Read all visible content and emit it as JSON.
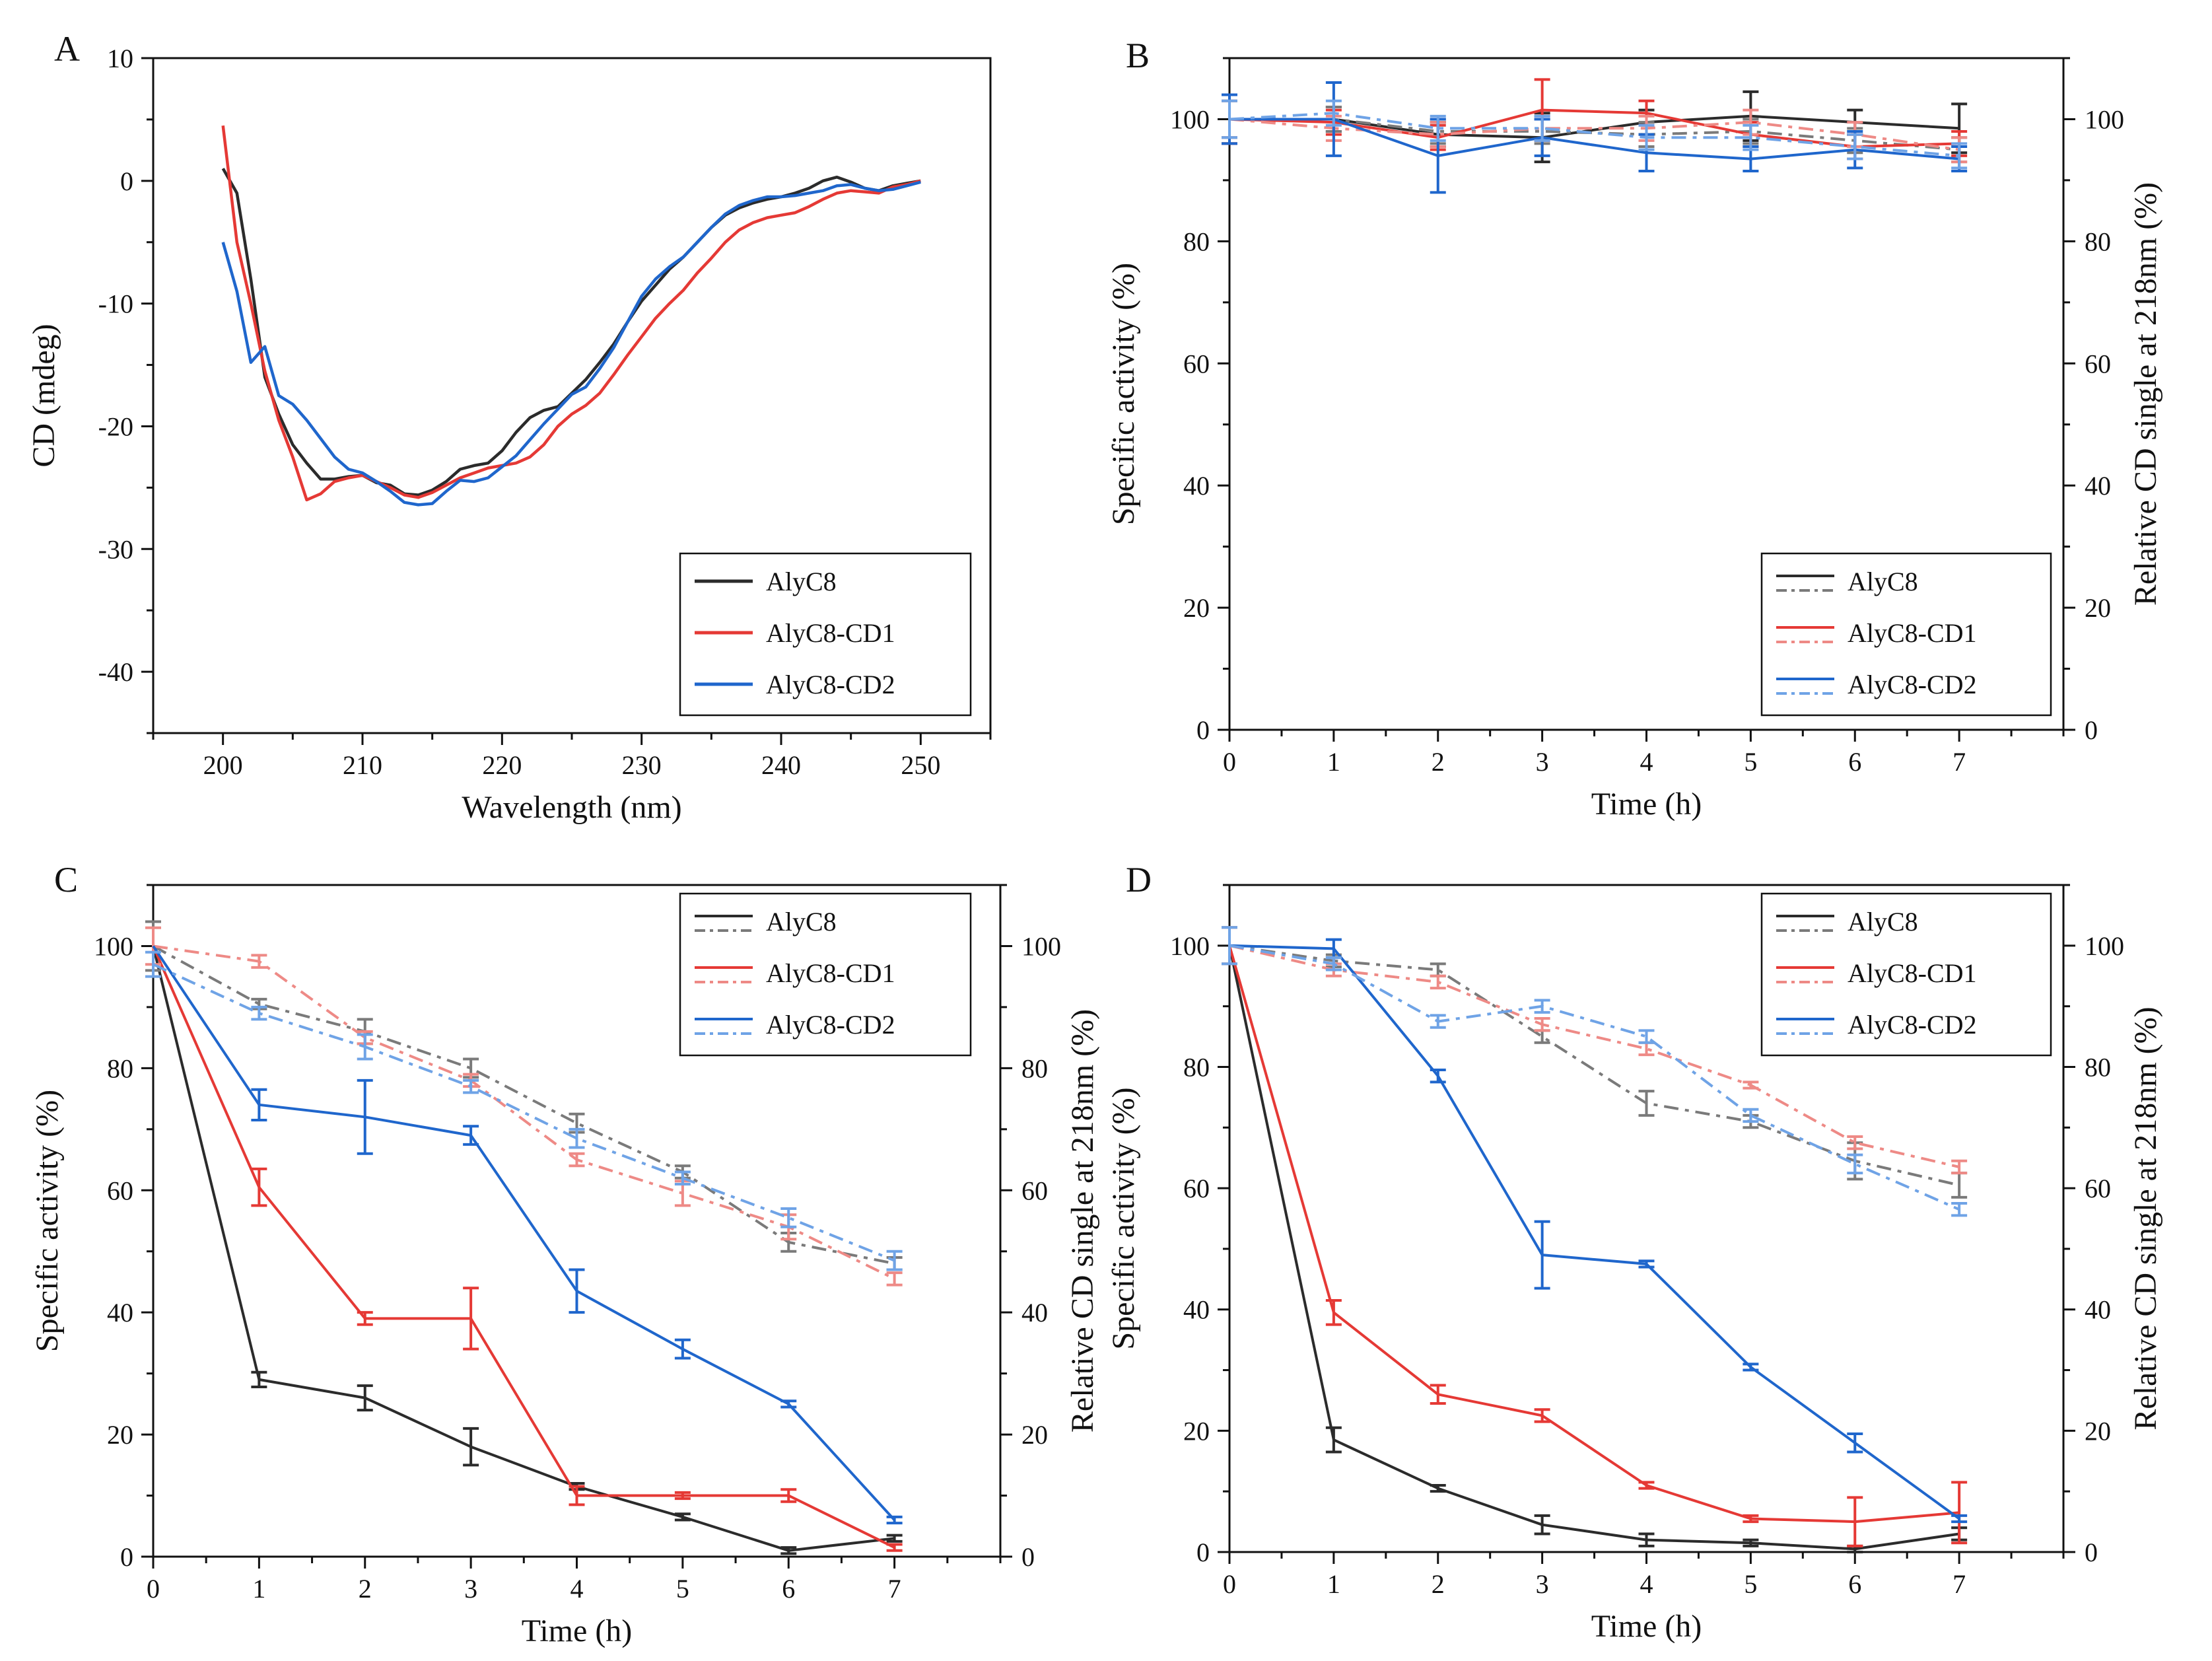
{
  "colors": {
    "AlyC8": "#2b2b2b",
    "AlyC8_dash": "#7a7a7a",
    "AlyC8-CD1": "#e53935",
    "AlyC8-CD1_dash": "#ee8a86",
    "AlyC8-CD2": "#1f66cc",
    "AlyC8-CD2_dash": "#6fa3e6"
  },
  "legend_labels": [
    "AlyC8",
    "AlyC8-CD1",
    "AlyC8-CD2"
  ],
  "chart_data": [
    {
      "panel": "A",
      "type": "line",
      "xlabel": "Wavelength (nm)",
      "ylabel": "CD (mdeg)",
      "xlim": [
        195,
        255
      ],
      "ylim": [
        -45,
        10
      ],
      "xticks": [
        200,
        210,
        220,
        230,
        240,
        250
      ],
      "yticks": [
        10,
        0,
        -10,
        -20,
        -30,
        -40
      ],
      "legend_position": "bottom-right",
      "series": [
        {
          "name": "AlyC8",
          "x": [
            200,
            201,
            202,
            203,
            204,
            205,
            206,
            207,
            208,
            209,
            210,
            211,
            212,
            213,
            214,
            215,
            216,
            217,
            218,
            219,
            220,
            221,
            222,
            223,
            224,
            225,
            226,
            227,
            228,
            229,
            230,
            231,
            232,
            233,
            234,
            235,
            236,
            237,
            238,
            239,
            240,
            241,
            242,
            243,
            244,
            245,
            246,
            247,
            248,
            249,
            250
          ],
          "y": [
            1,
            -1,
            -8,
            -16,
            -19,
            -21.5,
            -23,
            -24.3,
            -24.3,
            -24.1,
            -24,
            -24.6,
            -24.8,
            -25.5,
            -25.6,
            -25.2,
            -24.5,
            -23.5,
            -23.2,
            -23,
            -22,
            -20.5,
            -19.3,
            -18.7,
            -18.4,
            -17.3,
            -16.2,
            -14.8,
            -13.3,
            -11.5,
            -9.8,
            -8.5,
            -7.2,
            -6.2,
            -5,
            -3.8,
            -2.8,
            -2.2,
            -1.8,
            -1.5,
            -1.3,
            -1,
            -0.6,
            0,
            0.3,
            -0.1,
            -0.6,
            -0.8,
            -0.4,
            -0.2,
            0
          ]
        },
        {
          "name": "AlyC8-CD1",
          "x": [
            200,
            201,
            202,
            203,
            204,
            205,
            206,
            207,
            208,
            209,
            210,
            211,
            212,
            213,
            214,
            215,
            216,
            217,
            218,
            219,
            220,
            221,
            222,
            223,
            224,
            225,
            226,
            227,
            228,
            229,
            230,
            231,
            232,
            233,
            234,
            235,
            236,
            237,
            238,
            239,
            240,
            241,
            242,
            243,
            244,
            245,
            246,
            247,
            248,
            249,
            250
          ],
          "y": [
            4.5,
            -5,
            -10,
            -15.5,
            -19.5,
            -22.5,
            -26,
            -25.5,
            -24.5,
            -24.2,
            -24,
            -24.5,
            -25,
            -25.6,
            -25.8,
            -25.4,
            -24.8,
            -24.2,
            -23.8,
            -23.4,
            -23.2,
            -23,
            -22.5,
            -21.5,
            -20,
            -19,
            -18.3,
            -17.3,
            -15.8,
            -14.2,
            -12.7,
            -11.2,
            -10,
            -8.9,
            -7.5,
            -6.3,
            -5,
            -4,
            -3.4,
            -3,
            -2.8,
            -2.6,
            -2.1,
            -1.5,
            -1,
            -0.8,
            -0.9,
            -1,
            -0.5,
            -0.3,
            0
          ]
        },
        {
          "name": "AlyC8-CD2",
          "x": [
            200,
            201,
            202,
            203,
            204,
            205,
            206,
            207,
            208,
            209,
            210,
            211,
            212,
            213,
            214,
            215,
            216,
            217,
            218,
            219,
            220,
            221,
            222,
            223,
            224,
            225,
            226,
            227,
            228,
            229,
            230,
            231,
            232,
            233,
            234,
            235,
            236,
            237,
            238,
            239,
            240,
            241,
            242,
            243,
            244,
            245,
            246,
            247,
            248,
            249,
            250
          ],
          "y": [
            -5,
            -9,
            -14.8,
            -13.5,
            -17.5,
            -18.2,
            -19.5,
            -21,
            -22.5,
            -23.5,
            -23.8,
            -24.5,
            -25.3,
            -26.2,
            -26.4,
            -26.3,
            -25.3,
            -24.4,
            -24.5,
            -24.2,
            -23.3,
            -22.4,
            -21.1,
            -19.8,
            -18.6,
            -17.4,
            -16.8,
            -15.3,
            -13.6,
            -11.5,
            -9.4,
            -8,
            -7,
            -6.2,
            -5,
            -3.8,
            -2.7,
            -2,
            -1.6,
            -1.3,
            -1.3,
            -1.2,
            -1,
            -0.8,
            -0.4,
            -0.3,
            -0.6,
            -0.8,
            -0.7,
            -0.4,
            -0.1
          ]
        }
      ]
    },
    {
      "panel": "B",
      "type": "line",
      "xlabel": "Time (h)",
      "ylabel": "Specific activity (%)",
      "y2label": "Relative CD single at 218nm (%)",
      "xlim": [
        0,
        8
      ],
      "ylim": [
        0,
        110
      ],
      "xticks": [
        0,
        1,
        2,
        3,
        4,
        5,
        6,
        7
      ],
      "yticks": [
        0,
        20,
        40,
        60,
        80,
        100
      ],
      "legend_position": "bottom-right",
      "series": [
        {
          "name": "AlyC8",
          "style": "solid",
          "x": [
            0,
            1,
            2,
            3,
            4,
            5,
            6,
            7
          ],
          "y": [
            100,
            100,
            97.5,
            97,
            99.5,
            100.5,
            99.5,
            98.5
          ],
          "err": [
            4,
            2,
            2,
            4,
            2,
            4,
            2,
            4
          ]
        },
        {
          "name": "AlyC8 (CD)",
          "style": "dashed",
          "x": [
            0,
            1,
            2,
            3,
            4,
            5,
            6,
            7
          ],
          "y": [
            100,
            100,
            98,
            98,
            97.5,
            98,
            96.5,
            95
          ],
          "err": [
            3,
            2,
            2,
            2,
            2,
            2,
            2,
            2
          ]
        },
        {
          "name": "AlyC8-CD1",
          "style": "solid",
          "x": [
            0,
            1,
            2,
            3,
            4,
            5,
            6,
            7
          ],
          "y": [
            100,
            99.5,
            97,
            101.5,
            101,
            97.5,
            95.5,
            96
          ],
          "err": [
            4,
            2,
            2,
            5,
            2,
            2,
            2,
            2
          ]
        },
        {
          "name": "AlyC8-CD1 (CD)",
          "style": "dashed",
          "x": [
            0,
            1,
            2,
            3,
            4,
            5,
            6,
            7
          ],
          "y": [
            100,
            98.5,
            97.5,
            98.5,
            98.5,
            99.5,
            97.5,
            95
          ],
          "err": [
            3,
            2,
            2,
            2,
            2,
            2,
            2,
            2
          ]
        },
        {
          "name": "AlyC8-CD2",
          "style": "solid",
          "x": [
            0,
            1,
            2,
            3,
            4,
            5,
            6,
            7
          ],
          "y": [
            100,
            100,
            94,
            97,
            94.5,
            93.5,
            95,
            93.5
          ],
          "err": [
            4,
            6,
            6,
            3,
            3,
            2,
            3,
            2
          ]
        },
        {
          "name": "AlyC8-CD2 (CD)",
          "style": "dashed",
          "x": [
            0,
            1,
            2,
            3,
            4,
            5,
            6,
            7
          ],
          "y": [
            100,
            101,
            98.5,
            98.5,
            97,
            97,
            95.5,
            94
          ],
          "err": [
            3,
            2,
            2,
            2,
            2,
            2,
            2,
            2
          ]
        }
      ]
    },
    {
      "panel": "C",
      "type": "line",
      "xlabel": "Time (h)",
      "ylabel": "Specific activity (%)",
      "y2label": "Relative CD single at 218nm (%)",
      "xlim": [
        0,
        8
      ],
      "ylim": [
        0,
        110
      ],
      "xticks": [
        0,
        1,
        2,
        3,
        4,
        5,
        6,
        7
      ],
      "yticks": [
        0,
        20,
        40,
        60,
        80,
        100
      ],
      "legend_position": "top-right",
      "series": [
        {
          "name": "AlyC8",
          "style": "solid",
          "x": [
            0,
            1,
            2,
            3,
            4,
            5,
            6,
            7
          ],
          "y": [
            100,
            29,
            26,
            18,
            11.5,
            6.5,
            1,
            3
          ],
          "err": [
            0,
            1.2,
            2,
            3,
            0.5,
            0.5,
            0.5,
            0.5
          ]
        },
        {
          "name": "AlyC8 (CD)",
          "style": "dashed",
          "x": [
            0,
            1,
            2,
            3,
            4,
            5,
            6,
            7
          ],
          "y": [
            100,
            90.5,
            86,
            80,
            71,
            63,
            51.5,
            48
          ],
          "err": [
            4,
            0.8,
            2,
            1.5,
            1.5,
            1,
            1.5,
            1
          ]
        },
        {
          "name": "AlyC8-CD1",
          "style": "solid",
          "x": [
            0,
            1,
            2,
            3,
            4,
            5,
            6,
            7
          ],
          "y": [
            100,
            60.5,
            39,
            39,
            10,
            10,
            10,
            1.5
          ],
          "err": [
            0,
            3,
            1,
            5,
            1.5,
            0.5,
            1,
            0.5
          ]
        },
        {
          "name": "AlyC8-CD1 (CD)",
          "style": "dashed",
          "x": [
            0,
            1,
            2,
            3,
            4,
            5,
            6,
            7
          ],
          "y": [
            100,
            97.5,
            85,
            78,
            65,
            59.5,
            54,
            45.5
          ],
          "err": [
            3,
            1,
            1,
            1,
            1,
            2,
            2,
            1
          ]
        },
        {
          "name": "AlyC8-CD2",
          "style": "solid",
          "x": [
            0,
            1,
            2,
            3,
            4,
            5,
            6,
            7
          ],
          "y": [
            100,
            74,
            72,
            69,
            43.5,
            34,
            25,
            6
          ],
          "err": [
            0,
            2.5,
            6,
            1.5,
            3.5,
            1.5,
            0.5,
            0.5
          ]
        },
        {
          "name": "AlyC8-CD2 (CD)",
          "style": "dashed",
          "x": [
            0,
            1,
            2,
            3,
            4,
            5,
            6,
            7
          ],
          "y": [
            97,
            89,
            83.5,
            77,
            68.5,
            62,
            55.5,
            48.5
          ],
          "err": [
            2,
            1,
            2,
            1,
            1.5,
            1,
            1.5,
            1.5
          ]
        }
      ]
    },
    {
      "panel": "D",
      "type": "line",
      "xlabel": "Time (h)",
      "ylabel": "Specific activity (%)",
      "y2label": "Relative CD single at 218nm (%)",
      "xlim": [
        0,
        8
      ],
      "ylim": [
        0,
        110
      ],
      "xticks": [
        0,
        1,
        2,
        3,
        4,
        5,
        6,
        7
      ],
      "yticks": [
        0,
        20,
        40,
        60,
        80,
        100
      ],
      "legend_position": "top-right",
      "series": [
        {
          "name": "AlyC8",
          "style": "solid",
          "x": [
            0,
            1,
            2,
            3,
            4,
            5,
            6,
            7
          ],
          "y": [
            100,
            18.5,
            10.5,
            4.5,
            2,
            1.5,
            0.5,
            3
          ],
          "err": [
            0,
            2,
            0.5,
            1.5,
            1,
            0.5,
            0.5,
            1
          ]
        },
        {
          "name": "AlyC8 (CD)",
          "style": "dashed",
          "x": [
            0,
            1,
            2,
            3,
            4,
            5,
            6,
            7
          ],
          "y": [
            100,
            97.5,
            96,
            85,
            74,
            71,
            64.5,
            60.5
          ],
          "err": [
            3,
            1,
            1,
            1,
            2,
            1,
            3,
            2
          ]
        },
        {
          "name": "AlyC8-CD1",
          "style": "solid",
          "x": [
            0,
            1,
            2,
            3,
            4,
            5,
            6,
            7
          ],
          "y": [
            100,
            39.5,
            26,
            22.5,
            11,
            5.5,
            5,
            6.5
          ],
          "err": [
            0,
            2,
            1.5,
            1,
            0.5,
            0.5,
            4,
            5
          ]
        },
        {
          "name": "AlyC8-CD1 (CD)",
          "style": "dashed",
          "x": [
            0,
            1,
            2,
            3,
            4,
            5,
            6,
            7
          ],
          "y": [
            100,
            96,
            94,
            87,
            83,
            77,
            67.5,
            63.5
          ],
          "err": [
            3,
            1,
            1,
            1,
            1,
            0.5,
            1,
            1
          ]
        },
        {
          "name": "AlyC8-CD2",
          "style": "solid",
          "x": [
            0,
            1,
            2,
            3,
            4,
            5,
            6,
            7
          ],
          "y": [
            100,
            99.5,
            78.5,
            49,
            47.5,
            30.5,
            18,
            5.5
          ],
          "err": [
            0,
            1.5,
            1,
            5.5,
            0.5,
            0.5,
            1.5,
            0.5
          ]
        },
        {
          "name": "AlyC8-CD2 (CD)",
          "style": "dashed",
          "x": [
            0,
            1,
            2,
            3,
            4,
            5,
            6,
            7
          ],
          "y": [
            100,
            97,
            87.5,
            90,
            85,
            72,
            64,
            56.5
          ],
          "err": [
            3,
            1,
            1,
            1,
            1,
            1,
            1.5,
            1
          ]
        }
      ]
    }
  ]
}
